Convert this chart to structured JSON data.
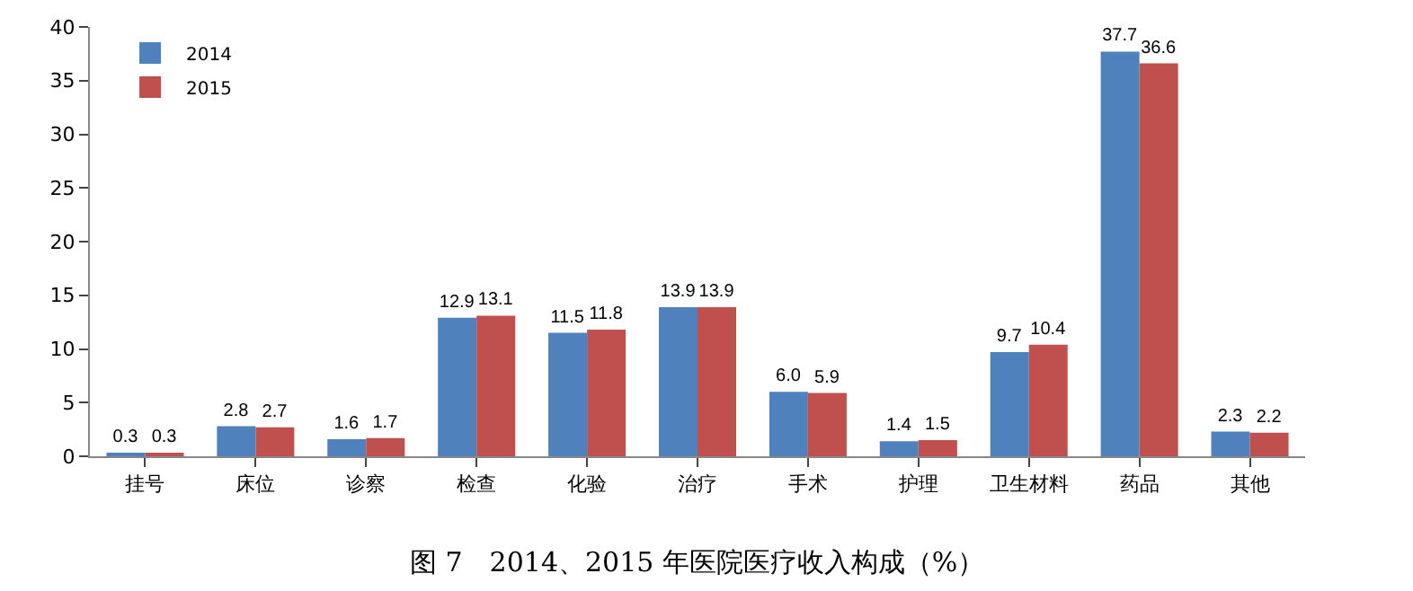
{
  "chart_data": {
    "type": "bar",
    "title": "图 7　2014、2015 年医院医疗收入构成（%）",
    "categories": [
      "挂号",
      "床位",
      "诊察",
      "检查",
      "化验",
      "治疗",
      "手术",
      "护理",
      "卫生材料",
      "药品",
      "其他"
    ],
    "series": [
      {
        "name": "2014",
        "color": "#4f81bd",
        "values": [
          0.3,
          2.8,
          1.6,
          12.9,
          11.5,
          13.9,
          6.0,
          1.4,
          9.7,
          37.7,
          2.3
        ],
        "value_labels": [
          "0.3",
          "2.8",
          "1.6",
          "12.9",
          "11.5",
          "13.9",
          "6.0",
          "1.4",
          "9.7",
          "37.7",
          "2.3"
        ]
      },
      {
        "name": "2015",
        "color": "#c0504d",
        "values": [
          0.3,
          2.7,
          1.7,
          13.1,
          11.8,
          13.9,
          5.9,
          1.5,
          10.4,
          36.6,
          2.2
        ],
        "value_labels": [
          "0.3",
          "2.7",
          "1.7",
          "13.1",
          "11.8",
          "13.9",
          "5.9",
          "1.5",
          "10.4",
          "36.6",
          "2.2"
        ]
      }
    ],
    "ylim": [
      0,
      40
    ],
    "yticks": [
      0,
      5,
      10,
      15,
      20,
      25,
      30,
      35,
      40
    ],
    "grid": false,
    "legend": "top left"
  }
}
